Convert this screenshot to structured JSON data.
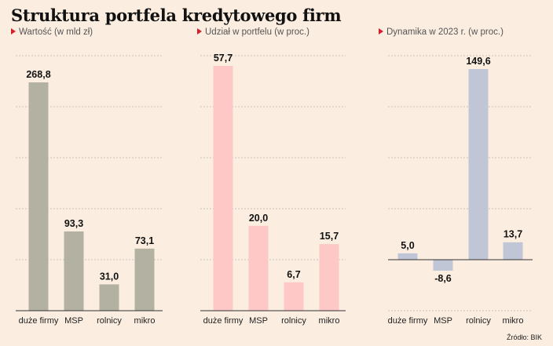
{
  "title": "Struktura portfela kredytowego firm",
  "source": "Źródło: BIK",
  "colors": {
    "background": "#fbeee1",
    "accent_triangle": "#d4202a",
    "panel1_bar": "#b3b2a2",
    "panel2_bar": "#fdc8c6",
    "panel3_bar": "#c1c6d7",
    "grid": "#c9c2b9"
  },
  "chart_data": [
    {
      "type": "bar",
      "title": "Wartość (w mld zł)",
      "categories": [
        "duże firmy",
        "MSP",
        "rolnicy",
        "mikro"
      ],
      "values": [
        268.8,
        93.3,
        31.0,
        73.1
      ],
      "value_labels": [
        "268,8",
        "93,3",
        "31,0",
        "73,1"
      ],
      "xlabel": "",
      "ylabel": "",
      "grid": true
    },
    {
      "type": "bar",
      "title": "Udział w portfelu (w proc.)",
      "categories": [
        "duże firmy",
        "MSP",
        "rolnicy",
        "mikro"
      ],
      "values": [
        57.7,
        20.0,
        6.7,
        15.7
      ],
      "value_labels": [
        "57,7",
        "20,0",
        "6,7",
        "15,7"
      ],
      "xlabel": "",
      "ylabel": "",
      "grid": true
    },
    {
      "type": "bar",
      "title": "Dynamika w 2023 r. (w proc.)",
      "categories": [
        "duże firmy",
        "MSP",
        "rolnicy",
        "mikro"
      ],
      "values": [
        5.0,
        -8.6,
        149.6,
        13.7
      ],
      "value_labels": [
        "5,0",
        "-8,6",
        "149,6",
        "13,7"
      ],
      "xlabel": "",
      "ylabel": "",
      "grid": true
    }
  ]
}
